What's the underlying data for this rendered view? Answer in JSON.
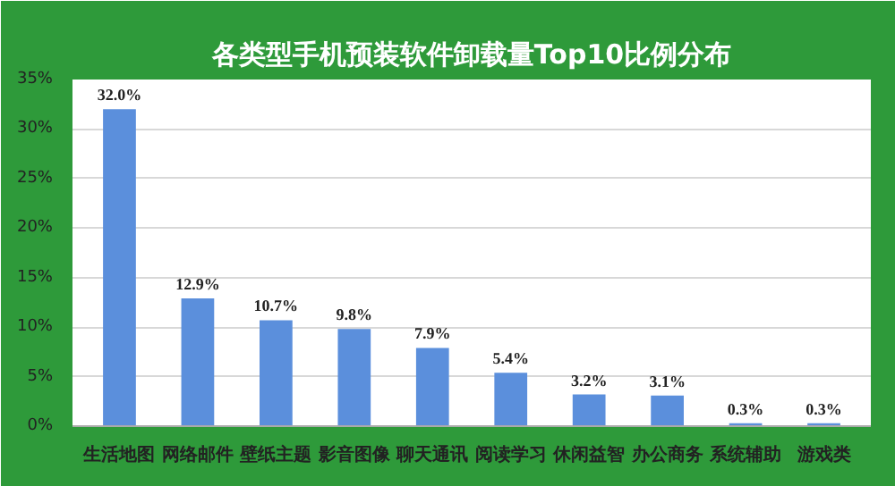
{
  "chart_data": {
    "type": "bar",
    "title": "各类型手机预装软件卸载量Top10比例分布",
    "categories": [
      "生活地图",
      "网络邮件",
      "壁纸主题",
      "影音图像",
      "聊天通讯",
      "阅读学习",
      "休闲益智",
      "办公商务",
      "系统辅助",
      "游戏类"
    ],
    "values": [
      32.0,
      12.9,
      10.7,
      9.8,
      7.9,
      5.4,
      3.2,
      3.1,
      0.3,
      0.3
    ],
    "value_labels": [
      "32.0%",
      "12.9%",
      "10.7%",
      "9.8%",
      "7.9%",
      "5.4%",
      "3.2%",
      "3.1%",
      "0.3%",
      "0.3%"
    ],
    "color": "#5b8fdc",
    "ylim": [
      0,
      35
    ],
    "yticks": [
      {
        "value": 0,
        "label": "0%"
      },
      {
        "value": 5,
        "label": "5%"
      },
      {
        "value": 10,
        "label": "10%"
      },
      {
        "value": 15,
        "label": "15%"
      },
      {
        "value": 20,
        "label": "20%"
      },
      {
        "value": 25,
        "label": "25%"
      },
      {
        "value": 30,
        "label": "30%"
      },
      {
        "value": 35,
        "label": "35%"
      }
    ],
    "grid": "y"
  }
}
